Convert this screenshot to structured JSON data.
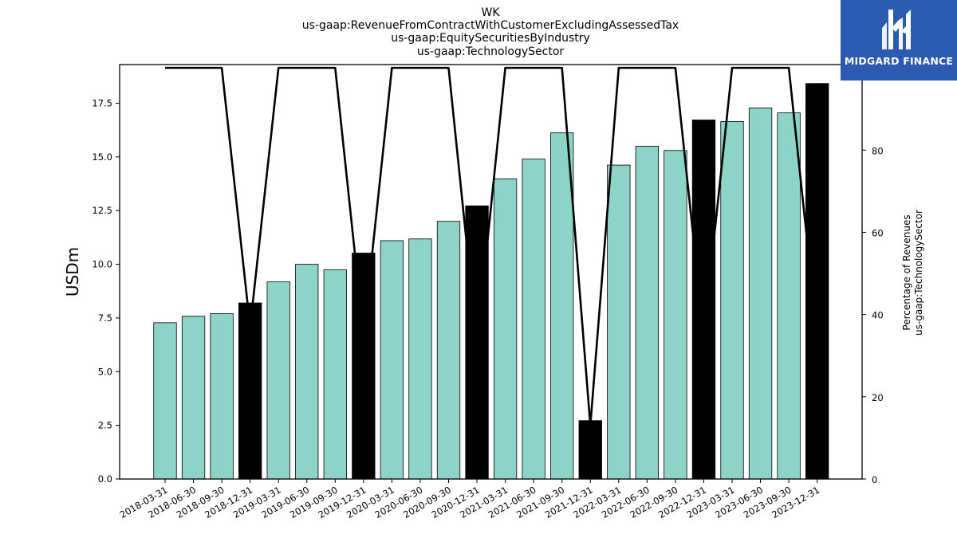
{
  "chart_data": {
    "type": "bar",
    "title_lines": [
      "WK",
      "us-gaap:RevenueFromContractWithCustomerExcludingAssessedTax",
      "us-gaap:EquitySecuritiesByIndustry",
      "us-gaap:TechnologySector"
    ],
    "ylabel": "USDm",
    "y2label_lines": [
      "Percentage of Revenues",
      "us-gaap:TechnologySector"
    ],
    "ylim": [
      0,
      19.3
    ],
    "y2lim": [
      0,
      100.8
    ],
    "yticks": [
      0.0,
      2.5,
      5.0,
      7.5,
      10.0,
      12.5,
      15.0,
      17.5
    ],
    "yticks_labels": [
      "0.0",
      "2.5",
      "5.0",
      "7.5",
      "10.0",
      "12.5",
      "15.0",
      "17.5"
    ],
    "y2ticks": [
      0,
      20,
      40,
      60,
      80,
      100
    ],
    "y2ticks_labels": [
      "0",
      "20",
      "40",
      "60",
      "80",
      "100"
    ],
    "categories": [
      "2018-03-31",
      "2018-06-30",
      "2018-09-30",
      "2018-12-31",
      "2019-03-31",
      "2019-06-30",
      "2019-09-30",
      "2019-12-31",
      "2020-03-31",
      "2020-06-30",
      "2020-09-30",
      "2020-12-31",
      "2021-03-31",
      "2021-06-30",
      "2021-09-30",
      "2021-12-31",
      "2022-03-31",
      "2022-06-30",
      "2022-09-30",
      "2022-12-31",
      "2023-03-31",
      "2023-06-30",
      "2023-09-30",
      "2023-12-31"
    ],
    "series": [
      {
        "type": "bar",
        "values": [
          7.28,
          7.58,
          7.7,
          8.2,
          9.18,
          10.0,
          9.74,
          10.52,
          11.1,
          11.18,
          12.0,
          12.72,
          13.98,
          14.9,
          16.12,
          2.72,
          14.62,
          15.5,
          15.3,
          16.72,
          16.65,
          17.28,
          17.05,
          18.42
        ],
        "colors": [
          "#8dd3c7",
          "#8dd3c7",
          "#8dd3c7",
          "#000000",
          "#8dd3c7",
          "#8dd3c7",
          "#8dd3c7",
          "#000000",
          "#8dd3c7",
          "#8dd3c7",
          "#8dd3c7",
          "#000000",
          "#8dd3c7",
          "#8dd3c7",
          "#8dd3c7",
          "#000000",
          "#8dd3c7",
          "#8dd3c7",
          "#8dd3c7",
          "#000000",
          "#8dd3c7",
          "#8dd3c7",
          "#8dd3c7",
          "#000000"
        ]
      },
      {
        "type": "line",
        "axis": "right",
        "color": "#000000",
        "values": [
          100,
          100,
          100,
          37,
          100,
          100,
          100,
          35,
          100,
          100,
          100,
          33,
          100,
          100,
          100,
          13,
          100,
          100,
          100,
          35,
          100,
          100,
          100,
          35
        ]
      }
    ],
    "grid": false,
    "legend": "none"
  },
  "logo": {
    "text": "MIDGARD FINANCE",
    "background": "#2a5bb0"
  }
}
